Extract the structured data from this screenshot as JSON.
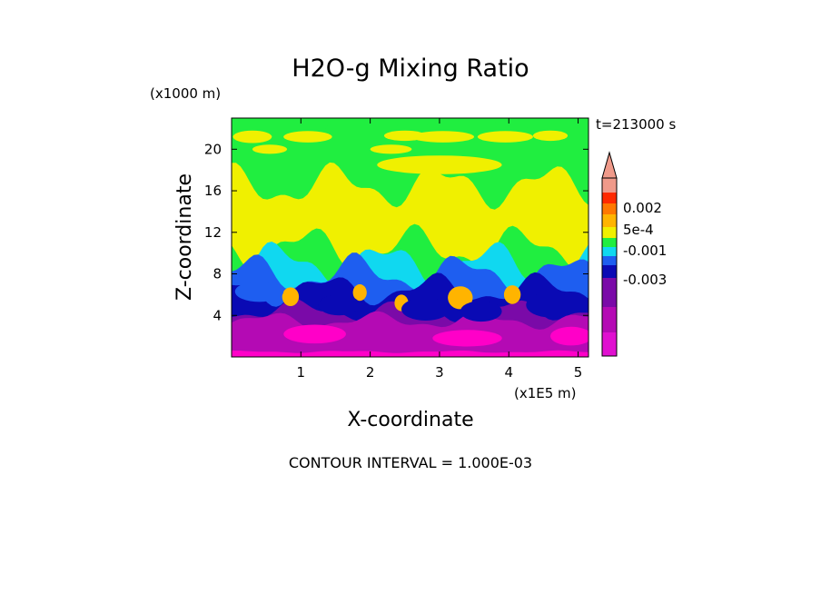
{
  "chart_data": {
    "type": "heatmap",
    "title": "H2O-g Mixing Ratio",
    "xlabel": "X-coordinate",
    "ylabel": "Z-coordinate",
    "x_unit": "(x1E5 m)",
    "y_unit": "(x1000 m)",
    "time_label": "t=213000 s",
    "footer": "CONTOUR INTERVAL = 1.000E-03",
    "xlim": [
      0,
      5.15
    ],
    "ylim": [
      0,
      23
    ],
    "x_ticks": [
      "1",
      "2",
      "3",
      "4",
      "5"
    ],
    "y_ticks": [
      "4",
      "8",
      "12",
      "16",
      "20"
    ],
    "colorbar": {
      "label_values": [
        "0.002",
        "5e-4",
        "-0.001",
        "-0.003"
      ],
      "colors_top_to_bottom": [
        "#f09a8a",
        "#ff2a00",
        "#ff7800",
        "#ffb400",
        "#f0f000",
        "#20ee40",
        "#10d8f0",
        "#1e5ef0",
        "#0a0ab4",
        "#7a0aa8",
        "#b40ab4",
        "#e010d0",
        "#ff00c8"
      ],
      "extend_top": true
    },
    "layers_bottom_to_top": [
      {
        "level": "-0.004",
        "color": "#ff00c8",
        "z_range": [
          0,
          0.5
        ]
      },
      {
        "level": "-0.003",
        "color": "#b40ab4",
        "z_range": [
          0.2,
          3.5
        ]
      },
      {
        "level": "-0.0025",
        "color": "#7a0aa8",
        "z_range": [
          1,
          4.5
        ]
      },
      {
        "level": "-0.002",
        "color": "#0a0ab4",
        "z_range": [
          2,
          6.5
        ]
      },
      {
        "level": "-0.0015",
        "color": "#1e5ef0",
        "z_range": [
          3,
          8
        ]
      },
      {
        "level": "-0.001",
        "color": "#10d8f0",
        "z_range": [
          4,
          9
        ]
      },
      {
        "level": "0",
        "color": "#20ee40",
        "z_range": [
          8,
          10.5
        ]
      },
      {
        "level": "5e-4",
        "color": "#f0f000",
        "z_range": [
          10,
          16.5
        ]
      },
      {
        "level": "0",
        "color": "#20ee40",
        "z_range": [
          16.5,
          23
        ]
      }
    ],
    "colors": {
      "magenta": "#ff00c8",
      "purple": "#b40ab4",
      "violet": "#7a0aa8",
      "navy": "#0a0ab4",
      "blue": "#1e5ef0",
      "cyan": "#10d8f0",
      "green": "#20ee40",
      "yellow": "#f0f000",
      "orange": "#ffb400"
    }
  }
}
